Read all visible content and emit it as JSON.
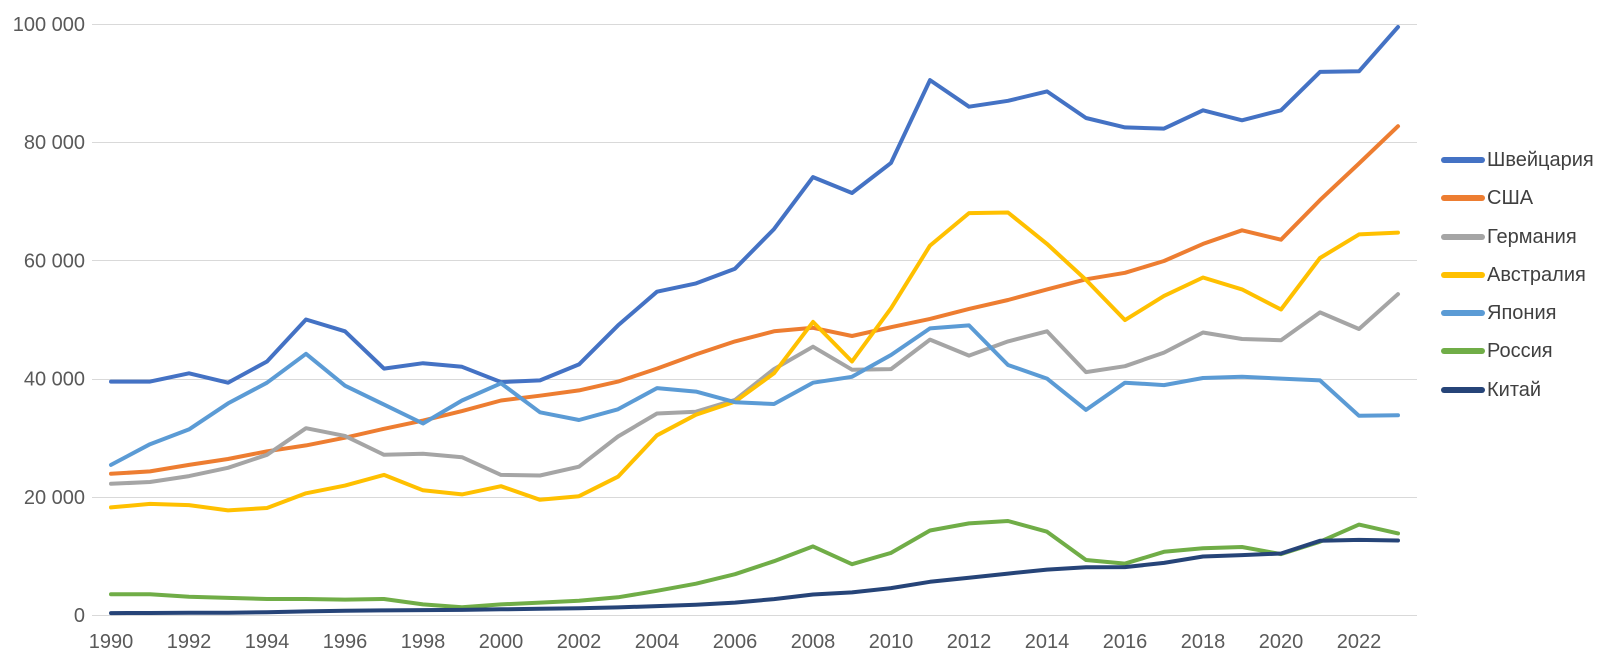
{
  "chart_data": {
    "type": "line",
    "title": "",
    "xlabel": "",
    "ylabel": "",
    "x": [
      1990,
      1991,
      1992,
      1993,
      1994,
      1995,
      1996,
      1997,
      1998,
      1999,
      2000,
      2001,
      2002,
      2003,
      2004,
      2005,
      2006,
      2007,
      2008,
      2009,
      2010,
      2011,
      2012,
      2013,
      2014,
      2015,
      2016,
      2017,
      2018,
      2019,
      2020,
      2021,
      2022,
      2023
    ],
    "x_tick_labels": [
      "1990",
      "1992",
      "1994",
      "1996",
      "1998",
      "2000",
      "2002",
      "2004",
      "2006",
      "2008",
      "2010",
      "2012",
      "2014",
      "2016",
      "2018",
      "2020",
      "2022"
    ],
    "y_ticks": [
      0,
      20000,
      40000,
      60000,
      80000,
      100000
    ],
    "y_tick_labels": [
      "0",
      "20 000",
      "40 000",
      "60 000",
      "80 000",
      "100 000"
    ],
    "ylim": [
      0,
      100000
    ],
    "grid": "horizontal",
    "legend_position": "right",
    "series": [
      {
        "name": "Швейцария",
        "color": "#4472C4",
        "values": [
          39500,
          39500,
          40900,
          39300,
          42900,
          50000,
          48000,
          41700,
          42600,
          42000,
          39400,
          39700,
          42400,
          49000,
          54700,
          56100,
          58600,
          65300,
          74100,
          71400,
          76500,
          90500,
          86000,
          87000,
          88600,
          84100,
          82500,
          82300,
          85400,
          83700,
          85400,
          91900,
          92000,
          99500
        ]
      },
      {
        "name": "США",
        "color": "#ED7D31",
        "values": [
          23900,
          24300,
          25400,
          26400,
          27700,
          28700,
          30000,
          31500,
          32900,
          34500,
          36300,
          37100,
          38000,
          39500,
          41700,
          44100,
          46300,
          48000,
          48600,
          47200,
          48700,
          50100,
          51800,
          53300,
          55100,
          56800,
          57900,
          59900,
          62800,
          65100,
          63500,
          70200,
          76400,
          82700
        ]
      },
      {
        "name": "Германия",
        "color": "#A5A5A5",
        "values": [
          22200,
          22500,
          23500,
          24900,
          27100,
          31600,
          30300,
          27100,
          27300,
          26700,
          23700,
          23600,
          25100,
          30200,
          34100,
          34400,
          36400,
          41600,
          45400,
          41500,
          41600,
          46600,
          43900,
          46300,
          48000,
          41100,
          42100,
          44400,
          47800,
          46700,
          46500,
          51200,
          48400,
          54300
        ]
      },
      {
        "name": "Австралия",
        "color": "#FFC000",
        "values": [
          18200,
          18800,
          18600,
          17700,
          18100,
          20600,
          21900,
          23700,
          21100,
          20400,
          21800,
          19500,
          20100,
          23400,
          30400,
          33900,
          36100,
          40900,
          49600,
          42900,
          51900,
          62500,
          68000,
          68100,
          62800,
          56700,
          49900,
          54000,
          57100,
          55100,
          51700,
          60400,
          64400,
          64700
        ]
      },
      {
        "name": "Япония",
        "color": "#5B9BD5",
        "values": [
          25400,
          28900,
          31400,
          35800,
          39300,
          44200,
          38800,
          35600,
          32400,
          36300,
          39200,
          34300,
          33000,
          34800,
          38400,
          37800,
          36000,
          35700,
          39300,
          40300,
          44000,
          48500,
          49000,
          42300,
          40000,
          34700,
          39300,
          38900,
          40100,
          40300,
          40000,
          39700,
          33700,
          33800
        ]
      },
      {
        "name": "Россия",
        "color": "#70AD47",
        "values": [
          3500,
          3500,
          3100,
          2900,
          2700,
          2700,
          2600,
          2700,
          1800,
          1300,
          1800,
          2100,
          2400,
          3000,
          4100,
          5300,
          6900,
          9100,
          11600,
          8600,
          10500,
          14300,
          15500,
          15900,
          14100,
          9300,
          8700,
          10700,
          11300,
          11500,
          10300,
          12400,
          15300,
          13800
        ]
      },
      {
        "name": "Китай",
        "color": "#264478",
        "values": [
          320,
          330,
          370,
          380,
          470,
          610,
          710,
          780,
          830,
          870,
          960,
          1050,
          1150,
          1290,
          1510,
          1750,
          2100,
          2690,
          3470,
          3830,
          4550,
          5610,
          6300,
          7000,
          7680,
          8070,
          8100,
          8820,
          9900,
          10140,
          10410,
          12550,
          12700,
          12600
        ]
      }
    ]
  },
  "colors": {
    "background": "#FFFFFF",
    "gridline": "#D9D9D9",
    "axis_text": "#595959",
    "legend_text": "#404040"
  }
}
